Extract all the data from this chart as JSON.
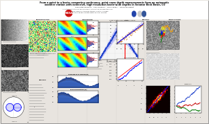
{
  "title_line1": "From a point to a basin: comparing continuous, point snow depth measurements from an automatic",
  "title_line2": "weather station with extensive, high-resolution basin-wide depths in Senator Beck Basin, CO",
  "authors": "Ross Peter Marshall,  Andy Gleason¹,  Chris Landry²,  James McCreight³",
  "affil1": "1. Institute of Arctic and Alpine Research, University of Colorado at Boulder",
  "affil2": "2. Center for Snow and Avalanche Studies, Silverton, Colorado",
  "affil3": "3. National Snow and Ice Data Center, Boulder, Colorado",
  "poster_bg": "#e8e4df",
  "white": "#ffffff",
  "text_dark": "#111111",
  "col_bg": "#dcdad6"
}
